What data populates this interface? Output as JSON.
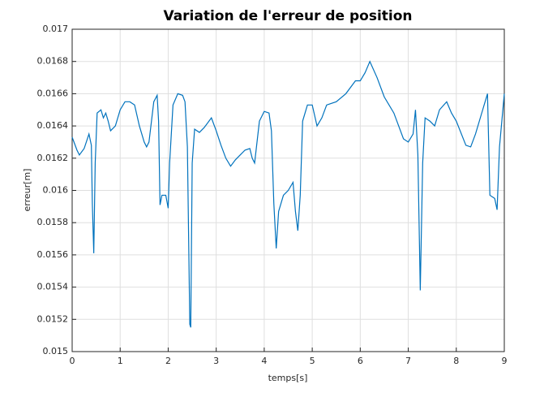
{
  "chart_data": {
    "type": "line",
    "title": "Variation de l'erreur de position",
    "xlabel": "temps[s]",
    "ylabel": "erreur[m]",
    "x": [
      0,
      0.1,
      0.15,
      0.25,
      0.35,
      0.4,
      0.42,
      0.45,
      0.48,
      0.52,
      0.6,
      0.65,
      0.7,
      0.75,
      0.8,
      0.9,
      1.0,
      1.1,
      1.2,
      1.3,
      1.4,
      1.5,
      1.55,
      1.6,
      1.7,
      1.77,
      1.8,
      1.83,
      1.87,
      1.95,
      2.0,
      2.03,
      2.1,
      2.2,
      2.3,
      2.35,
      2.4,
      2.45,
      2.47,
      2.5,
      2.55,
      2.65,
      2.75,
      2.9,
      3.0,
      3.1,
      3.2,
      3.3,
      3.4,
      3.5,
      3.6,
      3.7,
      3.75,
      3.8,
      3.9,
      4.0,
      4.1,
      4.15,
      4.2,
      4.25,
      4.3,
      4.4,
      4.5,
      4.6,
      4.65,
      4.7,
      4.75,
      4.8,
      4.9,
      5.0,
      5.1,
      5.2,
      5.3,
      5.5,
      5.7,
      5.9,
      6.0,
      6.1,
      6.2,
      6.35,
      6.5,
      6.7,
      6.9,
      7.0,
      7.1,
      7.15,
      7.2,
      7.25,
      7.3,
      7.35,
      7.45,
      7.55,
      7.65,
      7.8,
      7.9,
      8.0,
      8.2,
      8.3,
      8.4,
      8.55,
      8.65,
      8.7,
      8.8,
      8.85,
      8.9,
      9.0
    ],
    "series": [
      {
        "color": "#0072bd",
        "values": [
          0.01633,
          0.01625,
          0.01622,
          0.01626,
          0.01635,
          0.01628,
          0.01592,
          0.01561,
          0.01617,
          0.01648,
          0.0165,
          0.01645,
          0.01648,
          0.01643,
          0.01637,
          0.0164,
          0.0165,
          0.01655,
          0.01655,
          0.01653,
          0.0164,
          0.0163,
          0.01627,
          0.0163,
          0.01655,
          0.01659,
          0.01643,
          0.01591,
          0.01597,
          0.01597,
          0.01589,
          0.01617,
          0.01653,
          0.0166,
          0.01659,
          0.01655,
          0.01627,
          0.01517,
          0.01515,
          0.01617,
          0.01638,
          0.01636,
          0.01639,
          0.01645,
          0.01637,
          0.01628,
          0.0162,
          0.01615,
          0.01619,
          0.01622,
          0.01625,
          0.01626,
          0.0162,
          0.01617,
          0.01643,
          0.01649,
          0.01648,
          0.01637,
          0.01592,
          0.01564,
          0.01587,
          0.01597,
          0.016,
          0.01605,
          0.01587,
          0.01575,
          0.01597,
          0.01643,
          0.01653,
          0.01653,
          0.0164,
          0.01645,
          0.01653,
          0.01655,
          0.0166,
          0.01668,
          0.01668,
          0.01673,
          0.0168,
          0.0167,
          0.01658,
          0.01648,
          0.01632,
          0.0163,
          0.01635,
          0.0165,
          0.01622,
          0.01538,
          0.01617,
          0.01645,
          0.01643,
          0.0164,
          0.0165,
          0.01655,
          0.01648,
          0.01643,
          0.01628,
          0.01627,
          0.01635,
          0.0165,
          0.0166,
          0.01597,
          0.01595,
          0.01588,
          0.01627,
          0.0166
        ]
      }
    ],
    "xlim": [
      0,
      9
    ],
    "xticks": [
      0,
      1,
      2,
      3,
      4,
      5,
      6,
      7,
      8,
      9
    ],
    "ylim": [
      0.015,
      0.017
    ],
    "yticks": [
      0.015,
      0.0152,
      0.0154,
      0.0156,
      0.0158,
      0.016,
      0.0162,
      0.0164,
      0.0166,
      0.0168,
      0.017
    ],
    "grid": true
  }
}
